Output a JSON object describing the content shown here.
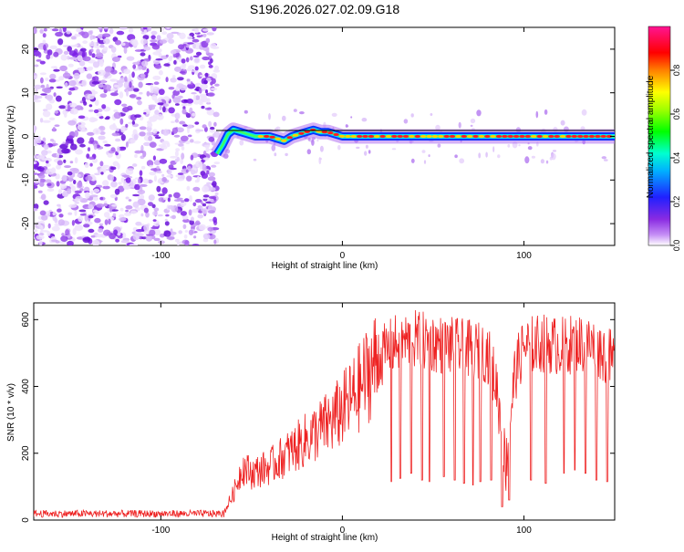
{
  "title": "S196.2026.027.02.09.G18",
  "chart_data": [
    {
      "type": "heatmap",
      "xlabel": "Height of straight line (km)",
      "ylabel": "Frequency (Hz)",
      "xlim": [
        -170,
        150
      ],
      "ylim": [
        -25,
        25
      ],
      "x_ticks": [
        -100,
        0,
        100
      ],
      "x_tick_labels": [
        "-100",
        "0",
        "100"
      ],
      "y_ticks": [
        -20,
        -10,
        0,
        10,
        20
      ],
      "y_tick_labels": [
        "-20",
        "-10",
        "0",
        "10",
        "20"
      ],
      "noise_region_x": [
        -170,
        -69
      ],
      "signal_ridge": {
        "x": [
          -69,
          -66,
          -63,
          -60,
          -56,
          -52,
          -48,
          -44,
          -40,
          -36,
          -32,
          -28,
          -24,
          -20,
          -16,
          -12,
          -8,
          -4,
          0,
          10,
          20,
          40,
          60,
          80,
          100,
          120,
          150
        ],
        "y": [
          -4,
          -2,
          0.5,
          1.5,
          1,
          0.5,
          0,
          0,
          0,
          -0.5,
          -1,
          0,
          0.5,
          1,
          1.5,
          1,
          1,
          0.5,
          0,
          0,
          0,
          0,
          0,
          0,
          0,
          0,
          0
        ]
      },
      "colorbar": {
        "label": "Normalized spectral amplitude",
        "range": [
          0,
          1
        ],
        "ticks": [
          0.0,
          0.2,
          0.4,
          0.6,
          0.8
        ],
        "tick_labels": [
          "0.0",
          "0.2",
          "0.4",
          "0.6",
          "0.8"
        ],
        "colors": [
          "#ffffff",
          "#8a2be2",
          "#0000ff",
          "#00e5ff",
          "#00ff00",
          "#ffff00",
          "#ff0000",
          "#ff1493"
        ]
      },
      "colors": {
        "noise": "#7b20e6",
        "ridge_core": "#ff2020",
        "ridge_edge": "#0a35ff"
      }
    },
    {
      "type": "line",
      "xlabel": "Height of straight line (km)",
      "ylabel": "SNR (10 * v/v)",
      "xlim": [
        -170,
        150
      ],
      "ylim": [
        0,
        650
      ],
      "x_ticks": [
        -100,
        0,
        100
      ],
      "x_tick_labels": [
        "-100",
        "0",
        "100"
      ],
      "y_ticks": [
        0,
        200,
        400,
        600
      ],
      "y_tick_labels": [
        "0",
        "200",
        "400",
        "600"
      ],
      "series_color": "#ee2222",
      "envelope": {
        "x": [
          -170,
          -120,
          -75,
          -65,
          -60,
          -55,
          -50,
          -45,
          -40,
          -35,
          -30,
          -25,
          -20,
          -15,
          -10,
          -5,
          0,
          5,
          10,
          15,
          20,
          25,
          30,
          40,
          50,
          60,
          70,
          80,
          85,
          90,
          95,
          100,
          110,
          120,
          130,
          140,
          150
        ],
        "y": [
          20,
          18,
          18,
          25,
          80,
          160,
          140,
          150,
          160,
          180,
          200,
          220,
          240,
          260,
          280,
          300,
          330,
          360,
          400,
          450,
          480,
          510,
          530,
          540,
          530,
          520,
          510,
          500,
          400,
          160,
          440,
          520,
          530,
          520,
          530,
          520,
          470
        ]
      },
      "dropouts": [
        {
          "x": 27,
          "y": 115
        },
        {
          "x": 32,
          "y": 125
        },
        {
          "x": 38,
          "y": 140
        },
        {
          "x": 44,
          "y": 120
        },
        {
          "x": 48,
          "y": 115
        },
        {
          "x": 56,
          "y": 130
        },
        {
          "x": 62,
          "y": 120
        },
        {
          "x": 67,
          "y": 110
        },
        {
          "x": 72,
          "y": 105
        },
        {
          "x": 76,
          "y": 115
        },
        {
          "x": 82,
          "y": 120
        },
        {
          "x": 88,
          "y": 40
        },
        {
          "x": 92,
          "y": 60
        },
        {
          "x": 104,
          "y": 120
        },
        {
          "x": 112,
          "y": 110
        },
        {
          "x": 122,
          "y": 140
        },
        {
          "x": 128,
          "y": 150
        },
        {
          "x": 134,
          "y": 140
        },
        {
          "x": 140,
          "y": 120
        },
        {
          "x": 146,
          "y": 115
        }
      ]
    }
  ]
}
